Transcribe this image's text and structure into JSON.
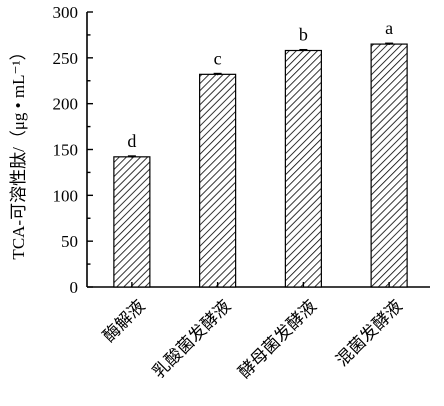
{
  "chart_data": {
    "type": "bar",
    "categories": [
      "酶解液",
      "乳酸菌发酵液",
      "酵母菌发酵液",
      "混菌发酵液"
    ],
    "values": [
      142,
      232,
      258,
      265
    ],
    "errors": [
      1,
      1,
      1,
      1
    ],
    "significance": [
      "d",
      "c",
      "b",
      "a"
    ],
    "ylabel": "TCA-可溶性肽/（μg • mL⁻¹）",
    "ylim": [
      0,
      300
    ],
    "yticks": [
      0,
      50,
      100,
      150,
      200,
      250,
      300
    ],
    "bar_fill": "hatched",
    "colors": {
      "bar_stroke": "#000000",
      "hatch": "#000000",
      "axis": "#000000"
    }
  }
}
